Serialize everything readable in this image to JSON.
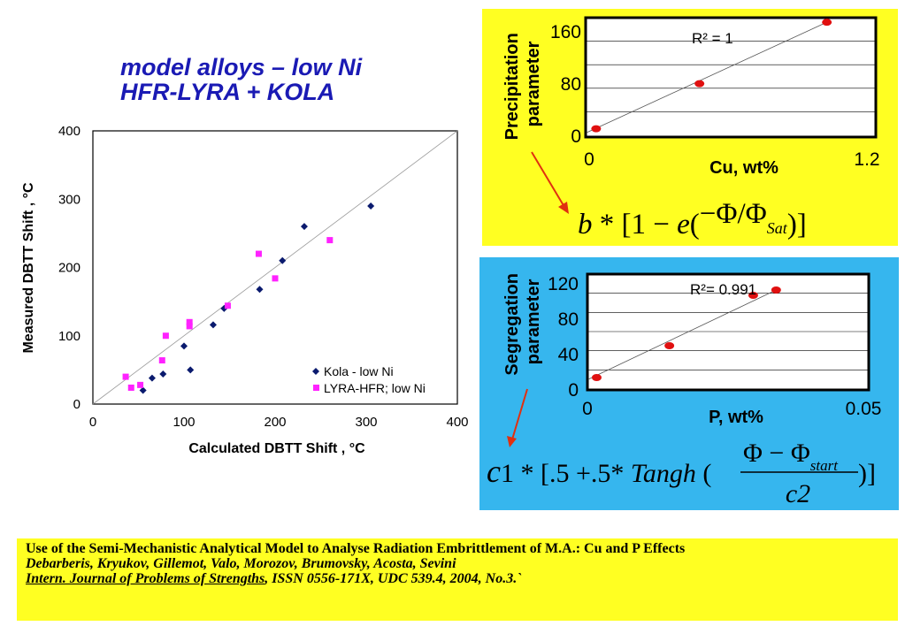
{
  "title": {
    "line1": "model alloys – low Ni",
    "line2": "HFR-LYRA + KOLA"
  },
  "colors": {
    "title": "#1a1ab4",
    "kola": "#0a1a6e",
    "lyra": "#ff22ff",
    "yellow_panel": "#ffff22",
    "blue_panel": "#36b6ee",
    "fit_point": "#e01010",
    "arrow": "#e03010"
  },
  "chart_data": [
    {
      "type": "scatter",
      "title": "",
      "xlabel": "Calculated DBTT Shift , °C",
      "ylabel": "Measured DBTT Shift , °C",
      "xlim": [
        0,
        400
      ],
      "ylim": [
        0,
        400
      ],
      "x_ticks": [
        "0",
        "100",
        "200",
        "300",
        "400"
      ],
      "y_ticks": [
        "0",
        "100",
        "200",
        "300",
        "400"
      ],
      "reference_line": "y = x",
      "legend_position": "bottom-right",
      "series": [
        {
          "name": "Kola - low Ni",
          "marker": "diamond",
          "points": [
            [
              55,
              20
            ],
            [
              65,
              38
            ],
            [
              77,
              44
            ],
            [
              100,
              85
            ],
            [
              107,
              50
            ],
            [
              132,
              116
            ],
            [
              144,
              140
            ],
            [
              183,
              168
            ],
            [
              208,
              210
            ],
            [
              232,
              260
            ],
            [
              305,
              290
            ]
          ]
        },
        {
          "name": "LYRA-HFR; low Ni",
          "marker": "square",
          "points": [
            [
              36,
              40
            ],
            [
              42,
              24
            ],
            [
              52,
              28
            ],
            [
              76,
              64
            ],
            [
              80,
              100
            ],
            [
              106,
              120
            ],
            [
              106,
              114
            ],
            [
              148,
              144
            ],
            [
              182,
              220
            ],
            [
              200,
              184
            ],
            [
              260,
              240
            ]
          ]
        }
      ]
    },
    {
      "type": "scatter",
      "title": "",
      "xlabel": "Cu, wt%",
      "ylabel": "Precipitation parameter",
      "xlim": [
        0,
        1.2
      ],
      "ylim": [
        0,
        180
      ],
      "x_ticks": [
        "0",
        "1.2"
      ],
      "y_ticks": [
        "0",
        "80",
        "160"
      ],
      "annotation": "R² = 1",
      "points": [
        [
          0.04,
          10
        ],
        [
          0.47,
          79
        ],
        [
          1.0,
          173
        ]
      ],
      "fit_line": [
        [
          0.0,
          4
        ],
        [
          1.0,
          173
        ]
      ]
    },
    {
      "type": "scatter",
      "title": "",
      "xlabel": "P, wt%",
      "ylabel": "Segregation parameter",
      "xlim": [
        0,
        0.05
      ],
      "ylim": [
        0,
        130
      ],
      "x_ticks": [
        "0",
        "0.05"
      ],
      "y_ticks": [
        "0",
        "40",
        "80",
        "120"
      ],
      "annotation": "R²= 0.991",
      "points": [
        [
          0.0015,
          13
        ],
        [
          0.0145,
          49
        ],
        [
          0.0295,
          106
        ],
        [
          0.0336,
          112
        ]
      ],
      "fit_line": [
        [
          0.0,
          11
        ],
        [
          0.0336,
          112
        ]
      ]
    }
  ],
  "formulas": {
    "precipitation": "b * [1 − e(−Φ/ΦSat)]",
    "segregation": "c1 * [.5 +.5* Tangh ((Φ − Φstart)/c2)]"
  },
  "citation": {
    "title": "Use of the Semi-Mechanistic Analytical Model to Analyse Radiation Embrittlement of M.A.: Cu and P Effects",
    "authors": "Debarberis, Kryukov, Gillemot, Valo, Morozov, Brumovsky, Acosta, Sevini",
    "journal": "Intern. Journal of Problems of Strengths",
    "details": ", ISSN 0556-171X, UDC 539.4, 2004, No.3.`"
  }
}
